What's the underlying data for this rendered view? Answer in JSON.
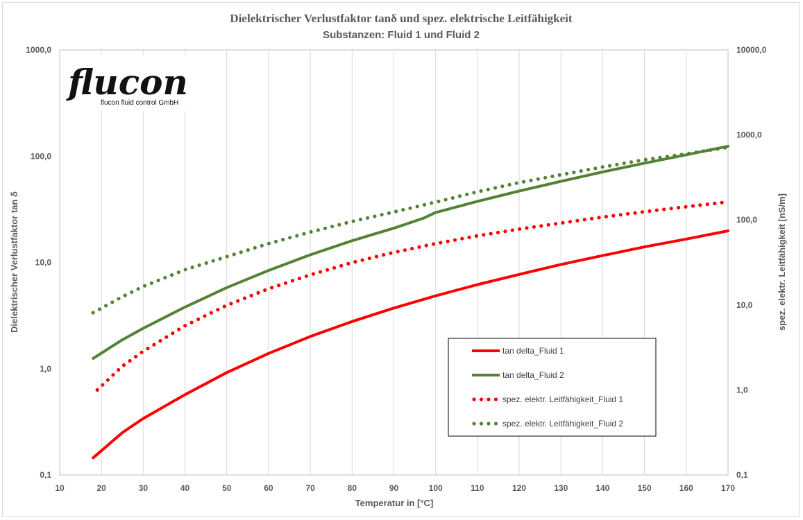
{
  "logo": {
    "main": "flucon",
    "sub": "flucon fluid control GmbH"
  },
  "chart_data": {
    "type": "line",
    "title": "Dielektrischer Verlustfaktor tanδ und spez. elektrische Leitfähigkeit",
    "subtitle": "Substanzen: Fluid 1 und Fluid 2",
    "xlabel": "Temperatur in [°C]",
    "ylabel": "Dielektrischer Verlustfaktor tan δ",
    "y2label": "spez. elektr. Leitfähigkeit [nS/m]",
    "xlim": [
      10,
      170
    ],
    "ylim": [
      0.1,
      1000
    ],
    "y2lim": [
      0.1,
      10000
    ],
    "yscale": "log",
    "y2scale": "log",
    "grid": "vertical",
    "x_ticks": [
      "10",
      "20",
      "30",
      "40",
      "50",
      "60",
      "70",
      "80",
      "90",
      "100",
      "110",
      "120",
      "130",
      "140",
      "150",
      "160",
      "170"
    ],
    "y_ticks": [
      "0,1",
      "1,0",
      "10,0",
      "100,0",
      "1000,0"
    ],
    "y2_ticks": [
      "0,1",
      "1,0",
      "10,0",
      "100,0",
      "1000,0",
      "10000,0"
    ],
    "legend_position": "lower-right",
    "series": [
      {
        "name": "tan delta_Fluid 1",
        "axis": "left",
        "style": "solid",
        "color": "#ff0000",
        "x": [
          18,
          25,
          30,
          40,
          50,
          60,
          70,
          80,
          90,
          100,
          110,
          120,
          130,
          140,
          150,
          160,
          170
        ],
        "y": [
          0.145,
          0.25,
          0.34,
          0.57,
          0.92,
          1.39,
          2.01,
          2.78,
          3.72,
          4.85,
          6.18,
          7.71,
          9.58,
          11.6,
          14.0,
          16.6,
          19.8
        ]
      },
      {
        "name": "tan delta_Fluid 2",
        "axis": "left",
        "style": "solid",
        "color": "#548235",
        "x": [
          18,
          25,
          30,
          40,
          50,
          60,
          70,
          80,
          90,
          97,
          100,
          110,
          120,
          130,
          140,
          150,
          160,
          170
        ],
        "y": [
          1.25,
          1.87,
          2.4,
          3.8,
          5.8,
          8.4,
          11.8,
          16.0,
          21.0,
          26.0,
          29.5,
          37.6,
          47.0,
          58.0,
          71.0,
          86.0,
          103,
          124
        ]
      },
      {
        "name": "spez. elektr. Leitfähigkeit_Fluid 1",
        "axis": "right",
        "style": "dotted",
        "color": "#ff0000",
        "x": [
          19,
          25,
          30,
          40,
          50,
          60,
          70,
          80,
          90,
          100,
          110,
          120,
          130,
          140,
          150,
          160,
          170
        ],
        "y": [
          1.0,
          1.9,
          2.85,
          5.7,
          9.9,
          15.5,
          22.6,
          31.5,
          41.5,
          52.7,
          65,
          78,
          92,
          108,
          125,
          143,
          163
        ]
      },
      {
        "name": "spez. elektr. Leitfähigkeit_Fluid 2",
        "axis": "right",
        "style": "dotted",
        "color": "#548235",
        "x": [
          18,
          25,
          30,
          40,
          50,
          60,
          70,
          80,
          90,
          100,
          110,
          120,
          130,
          140,
          150,
          160,
          170
        ],
        "y": [
          8.1,
          12.5,
          16.5,
          26.0,
          37.0,
          52.7,
          72.0,
          96.0,
          124,
          162,
          214,
          275,
          340,
          420,
          510,
          600,
          715
        ]
      }
    ]
  }
}
